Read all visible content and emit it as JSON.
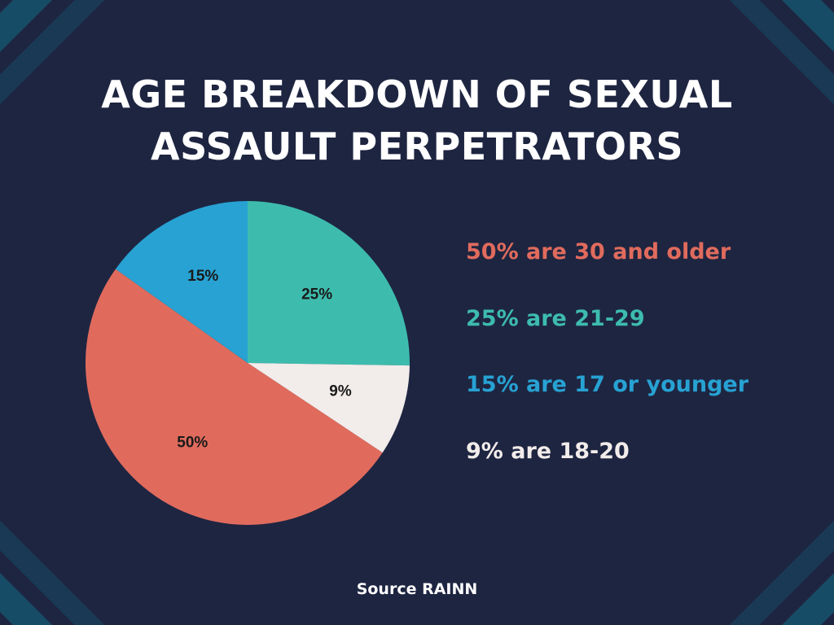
{
  "title_lines": [
    "AGE BREAKDOWN OF SEXUAL",
    "ASSAULT PERPETRATORS"
  ],
  "source": "Source RAINN",
  "colors": {
    "background": "#1e2541",
    "stripe": "#16546e",
    "coral": "#e06b5d",
    "teal": "#3dbcad",
    "blue": "#27a2d3",
    "white": "#f2ecea"
  },
  "chart_data": {
    "type": "pie",
    "title": "AGE BREAKDOWN OF SEXUAL ASSAULT PERPETRATORS",
    "slices": [
      {
        "label": "25% are 21-29",
        "value": 25,
        "display": "25%",
        "color": "#3dbcad"
      },
      {
        "label": "9% are 18-20",
        "value": 9,
        "display": "9%",
        "color": "#f2ecea"
      },
      {
        "label": "50% are 30 and older",
        "value": 50,
        "display": "50%",
        "color": "#e06b5d"
      },
      {
        "label": "15% are 17 or younger",
        "value": 15,
        "display": "15%",
        "color": "#27a2d3"
      }
    ],
    "legend": [
      {
        "text": "50% are 30 and older",
        "color": "#e06b5d"
      },
      {
        "text": "25% are 21-29",
        "color": "#3dbcad"
      },
      {
        "text": "15% are 17 or younger",
        "color": "#27a2d3"
      },
      {
        "text": "9% are 18-20",
        "color": "#f2ecea"
      }
    ],
    "legend_position": "right"
  }
}
